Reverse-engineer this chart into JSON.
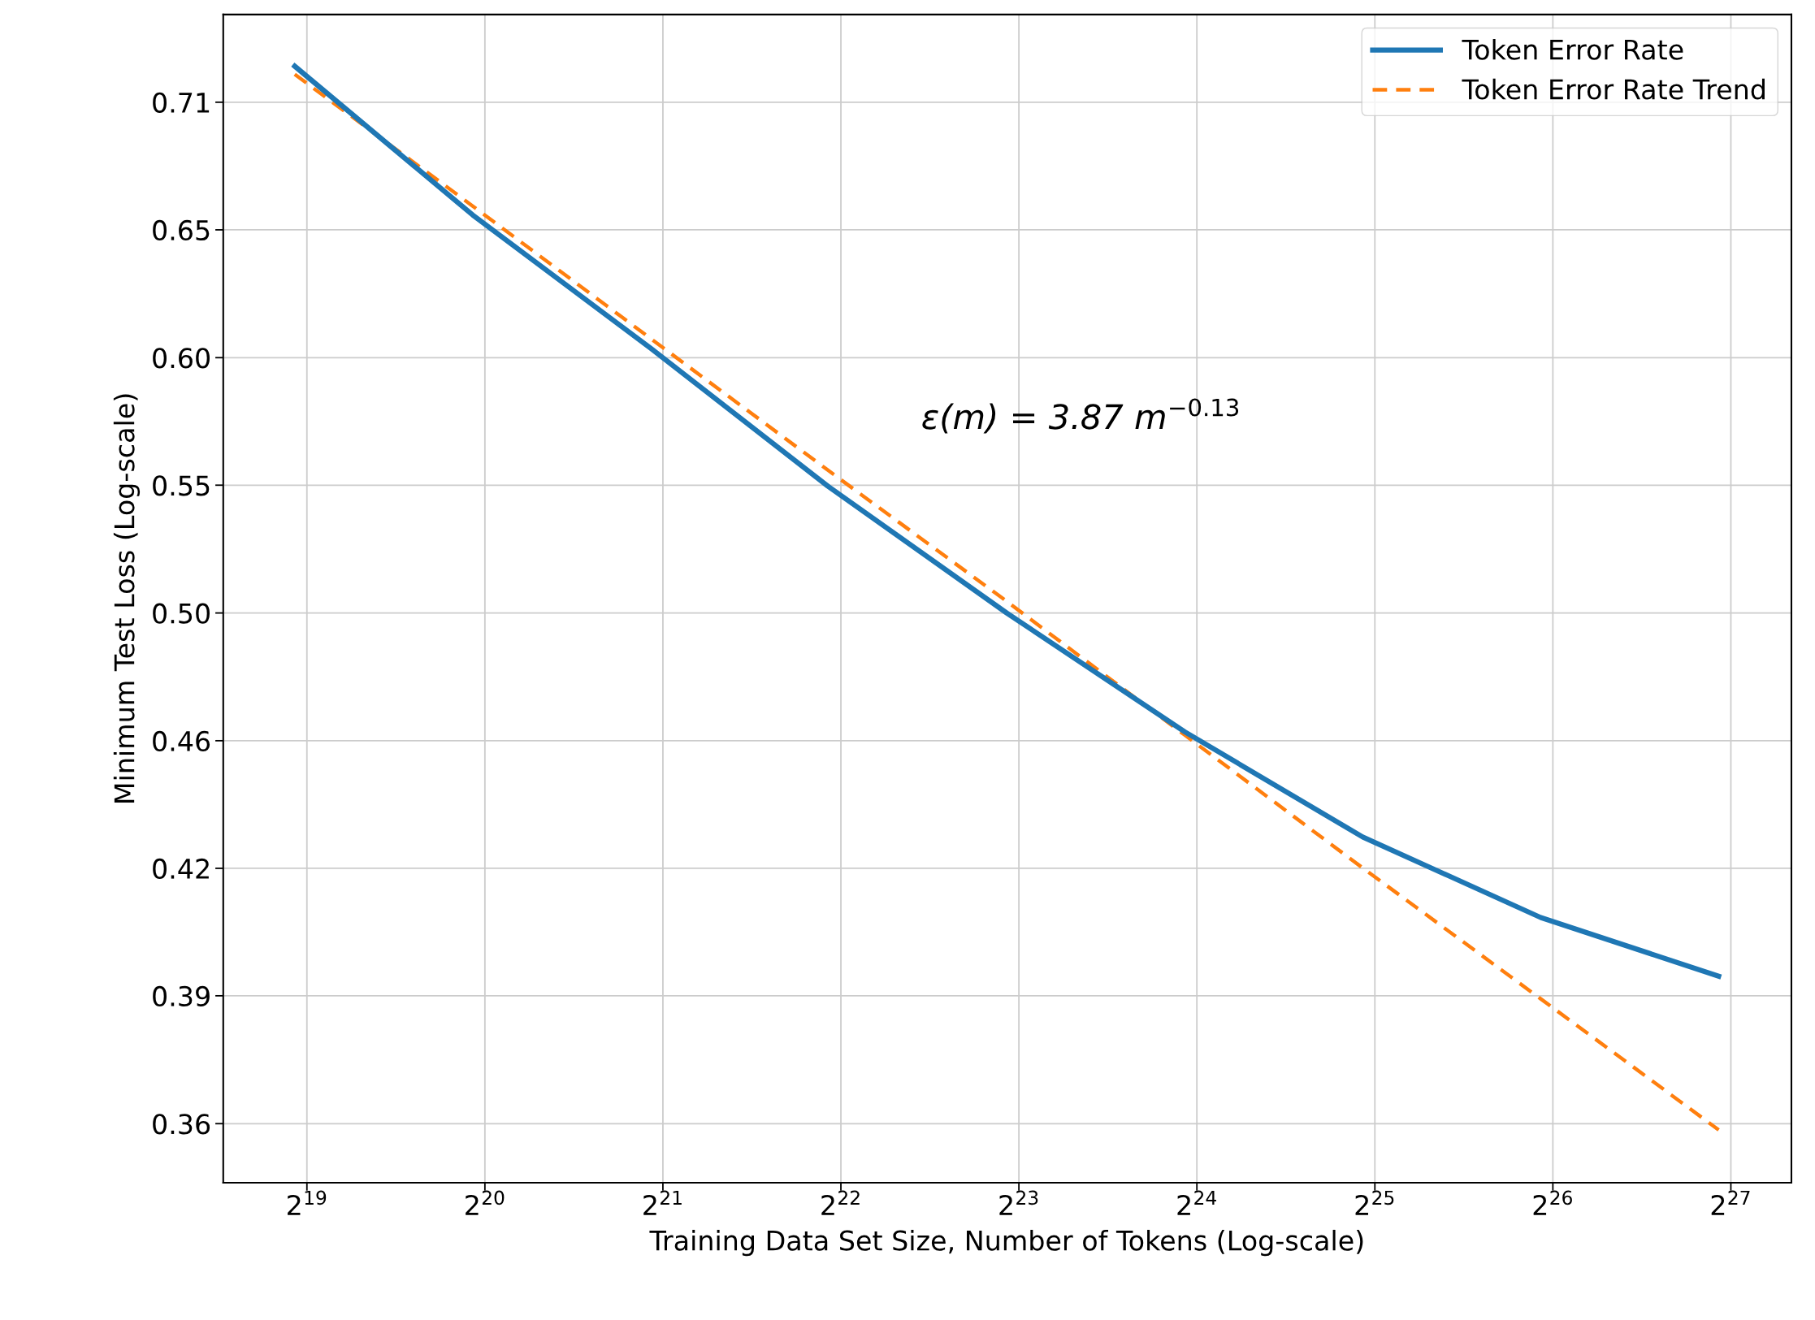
{
  "chart_data": {
    "type": "line",
    "xlabel": "Training Data Set Size, Number of Tokens (Log-scale)",
    "ylabel": "Minimum Test Loss (Log-scale)",
    "x": [
      500000,
      1000000,
      2000000,
      4000000,
      8000000,
      16000000,
      32000000,
      64000000,
      128000000
    ],
    "series": [
      {
        "name": "Token Error Rate",
        "color": "#1f77b4",
        "line_style": "solid",
        "values": [
          0.731,
          0.661,
          0.604,
          0.55,
          0.505,
          0.466,
          0.434,
          0.411,
          0.395
        ]
      },
      {
        "name": "Token Error Rate Trend",
        "color": "#ff7f0e",
        "line_style": "dashed",
        "values": [
          0.727,
          0.665,
          0.608,
          0.556,
          0.509,
          0.465,
          0.425,
          0.389,
          0.356
        ]
      }
    ],
    "log": "xy",
    "xlim": [
      378500,
      169900000
    ],
    "ylim": [
      0.3435,
      0.757
    ],
    "xticks": [
      {
        "value": 524288,
        "label": "2$^{19}$"
      },
      {
        "value": 1048576,
        "label": "2$^{20}$"
      },
      {
        "value": 2097152,
        "label": "2$^{21}$"
      },
      {
        "value": 4194304,
        "label": "2$^{22}$"
      },
      {
        "value": 8388608,
        "label": "2$^{23}$"
      },
      {
        "value": 16777216,
        "label": "2$^{24}$"
      },
      {
        "value": 33554432,
        "label": "2$^{25}$"
      },
      {
        "value": 67108864,
        "label": "2$^{26}$"
      },
      {
        "value": 134217728,
        "label": "2$^{27}$"
      }
    ],
    "yticks": [
      {
        "value": 0.3575,
        "label": "0.36"
      },
      {
        "value": 0.3898,
        "label": "0.39"
      },
      {
        "value": 0.4249,
        "label": "0.42"
      },
      {
        "value": 0.4632,
        "label": "0.46"
      },
      {
        "value": 0.505,
        "label": "0.50"
      },
      {
        "value": 0.5506,
        "label": "0.55"
      },
      {
        "value": 0.6002,
        "label": "0.60"
      },
      {
        "value": 0.6544,
        "label": "0.65"
      },
      {
        "value": 0.7134,
        "label": "0.71"
      }
    ],
    "annotations": [
      "ε(m) = 3.87 m$^{−0.13}$"
    ],
    "grid": true,
    "legend": "top right",
    "marker": "none"
  }
}
